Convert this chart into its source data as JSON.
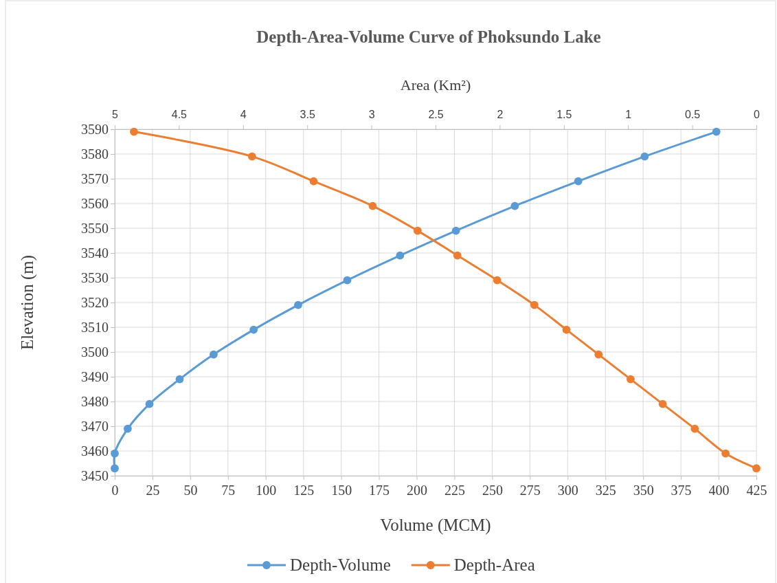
{
  "chart_data": {
    "type": "line",
    "title": "Depth-Area-Volume Curve of Phoksundo Lake",
    "xlabel": "Volume (MCM)",
    "ylabel": "Elevation (m)",
    "x2label": "Area (Km²)",
    "xlim": [
      0,
      425
    ],
    "xticks": [
      0,
      25,
      50,
      75,
      100,
      125,
      150,
      175,
      200,
      225,
      250,
      275,
      300,
      325,
      350,
      375,
      400,
      425
    ],
    "x2lim": [
      5,
      0
    ],
    "x2ticks": [
      5,
      4.5,
      4,
      3.5,
      3,
      2.5,
      2,
      1.5,
      1,
      0.5,
      0
    ],
    "ylim": [
      3450,
      3590
    ],
    "yticks": [
      3450,
      3460,
      3470,
      3480,
      3490,
      3500,
      3510,
      3520,
      3530,
      3540,
      3550,
      3560,
      3570,
      3580,
      3590
    ],
    "grid": true,
    "legend": "bottom",
    "marker": "circle",
    "line_style": "solid",
    "series": [
      {
        "name": "Depth-Volume",
        "color": "#5b9bd5",
        "x": [
          0,
          0,
          8.6,
          23,
          43,
          65.5,
          92,
          121.5,
          154,
          189,
          226,
          265,
          307,
          351,
          398.5
        ],
        "values": [
          3453,
          3459,
          3469,
          3479,
          3489,
          3499,
          3509,
          3519,
          3529,
          3539,
          3549,
          3559,
          3569,
          3579,
          3589
        ]
      },
      {
        "name": "Depth-Area",
        "color": "#ed7d31",
        "axis": "x2",
        "x": [
          0,
          0.24,
          0.48,
          0.73,
          0.98,
          1.23,
          1.48,
          1.73,
          2.02,
          2.33,
          2.64,
          2.99,
          3.45,
          3.93,
          4.85
        ],
        "values": [
          3453,
          3459,
          3469,
          3479,
          3489,
          3499,
          3509,
          3519,
          3529,
          3539,
          3549,
          3559,
          3569,
          3579,
          3589
        ]
      }
    ]
  }
}
